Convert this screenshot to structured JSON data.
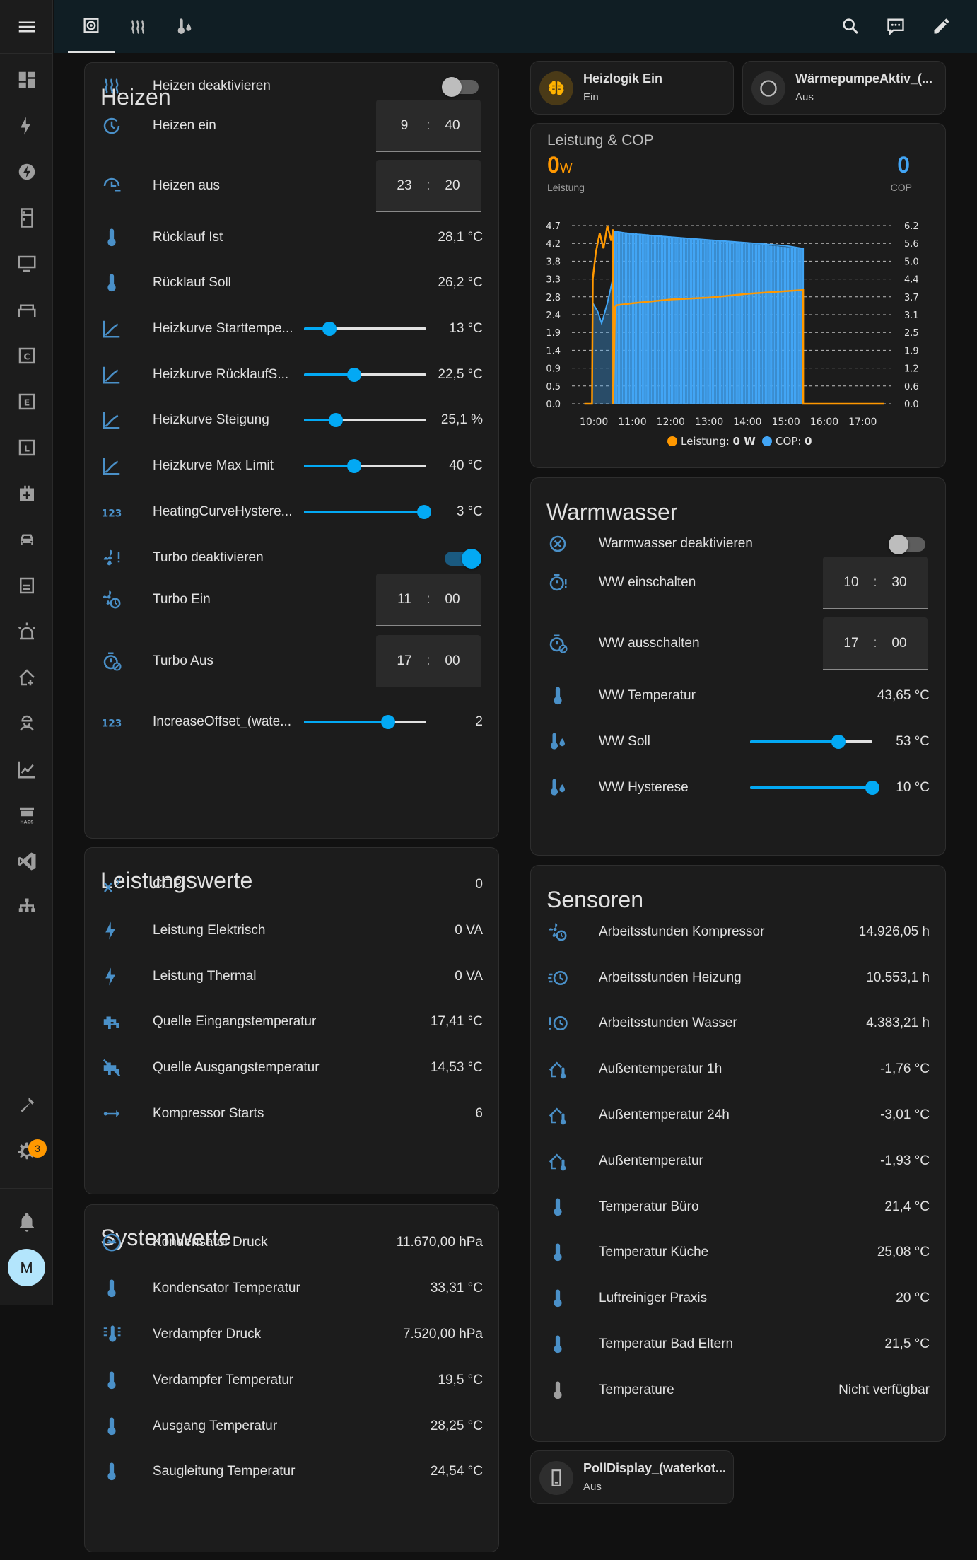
{
  "sidebar": {
    "notification_badge": "3",
    "user_initial": "M"
  },
  "chips": {
    "heizlogik": {
      "name": "Heizlogik Ein",
      "state": "Ein"
    },
    "waermepumpe": {
      "name": "WärmepumpeAktiv_(...",
      "state": "Aus"
    },
    "polldisplay": {
      "name": "PollDisplay_(waterkot...",
      "state": "Aus"
    }
  },
  "heizen": {
    "title": "Heizen",
    "rows": [
      {
        "label": "Heizen deaktivieren",
        "type": "toggle",
        "on": false,
        "icon": "radiator-icon"
      },
      {
        "label": "Heizen ein",
        "type": "time",
        "hour": "9",
        "minute": "40",
        "icon": "clock-start-icon"
      },
      {
        "label": "Heizen aus",
        "type": "time",
        "hour": "23",
        "minute": "20",
        "icon": "clock-end-icon"
      },
      {
        "label": "Rücklauf Ist",
        "value": "28,1 °C",
        "icon": "thermometer-icon"
      },
      {
        "label": "Rücklauf Soll",
        "value": "26,2 °C",
        "icon": "thermometer-icon"
      },
      {
        "label": "Heizkurve Starttempe...",
        "type": "slider",
        "fraction": 0.21,
        "value": "13 °C",
        "icon": "chart-line-icon"
      },
      {
        "label": "Heizkurve RücklaufS...",
        "type": "slider",
        "fraction": 0.41,
        "value": "22,5 °C",
        "icon": "chart-line-icon"
      },
      {
        "label": "Heizkurve Steigung",
        "type": "slider",
        "fraction": 0.26,
        "value": "25,1 %",
        "icon": "chart-line-icon"
      },
      {
        "label": "Heizkurve Max Limit",
        "type": "slider",
        "fraction": 0.41,
        "value": "40 °C",
        "icon": "chart-line-icon"
      },
      {
        "label": "HeatingCurveHystere...",
        "type": "slider",
        "fraction": 0.98,
        "value": "3 °C",
        "icon": "numeric-icon"
      },
      {
        "label": "Turbo deaktivieren",
        "type": "toggle",
        "on": true,
        "icon": "fan-alert-icon"
      },
      {
        "label": "Turbo Ein",
        "type": "time",
        "hour": "11",
        "minute": "00",
        "icon": "fan-clock-icon"
      },
      {
        "label": "Turbo Aus",
        "type": "time",
        "hour": "17",
        "minute": "00",
        "icon": "timer-off-icon"
      },
      {
        "label": "IncreaseOffset_(wate...",
        "type": "slider",
        "fraction": 0.69,
        "value": "2",
        "icon": "numeric-icon"
      }
    ]
  },
  "leistung": {
    "title": "Leistungswerte",
    "rows": [
      {
        "label": "COP",
        "value": "0",
        "icon": "math-power-icon"
      },
      {
        "label": "Leistung Elektrisch",
        "value": "0 VA",
        "icon": "flash-icon"
      },
      {
        "label": "Leistung Thermal",
        "value": "0 VA",
        "icon": "flash-icon"
      },
      {
        "label": "Quelle Eingangstemperatur",
        "value": "17,41 °C",
        "icon": "water-pump-icon"
      },
      {
        "label": "Quelle Ausgangstemperatur",
        "value": "14,53 °C",
        "icon": "water-pump-off-icon"
      },
      {
        "label": "Kompressor Starts",
        "value": "6",
        "icon": "arrow-left-right-icon"
      }
    ]
  },
  "system": {
    "title": "Systemwerte",
    "rows": [
      {
        "label": "Kondensator Druck",
        "value": "11.670,00 hPa",
        "icon": "gauge-icon"
      },
      {
        "label": "Kondensator Temperatur",
        "value": "33,31 °C",
        "icon": "thermometer-icon"
      },
      {
        "label": "Verdampfer Druck",
        "value": "7.520,00 hPa",
        "icon": "thermometer-lines-icon"
      },
      {
        "label": "Verdampfer Temperatur",
        "value": "19,5 °C",
        "icon": "thermometer-icon"
      },
      {
        "label": "Ausgang Temperatur",
        "value": "28,25 °C",
        "icon": "thermometer-icon"
      },
      {
        "label": "Saugleitung Temperatur",
        "value": "24,54 °C",
        "icon": "thermometer-icon"
      }
    ]
  },
  "chart_card": {
    "title": "Leistung & COP",
    "leistung_value": "0",
    "leistung_unit": "W",
    "leistung_label": "Leistung",
    "cop_value": "0",
    "cop_label": "COP",
    "legend_leistung": "Leistung: ",
    "legend_leistung_val": "0 W",
    "legend_cop": "COP: ",
    "legend_cop_val": "0"
  },
  "chart_data": {
    "type": "line",
    "x_ticks": [
      "10:00",
      "11:00",
      "12:00",
      "13:00",
      "14:00",
      "15:00",
      "16:00",
      "17:00"
    ],
    "y_left_ticks": [
      "4.7",
      "4.2",
      "3.8",
      "3.3",
      "2.8",
      "2.4",
      "1.9",
      "1.4",
      "0.9",
      "0.5",
      "0.0"
    ],
    "y_right_ticks": [
      "6.2",
      "5.6",
      "5.0",
      "4.4",
      "3.7",
      "3.1",
      "2.5",
      "1.9",
      "1.2",
      "0.6",
      "0.0"
    ],
    "ylim_left": [
      0,
      4.7
    ],
    "ylim_right": [
      0,
      6.2
    ],
    "series": [
      {
        "name": "Leistung",
        "color": "#ff9800",
        "axis": "left",
        "x": [
          9.75,
          9.95,
          9.97,
          10.05,
          10.15,
          10.25,
          10.35,
          10.45,
          10.5,
          10.5,
          10.55,
          10.6,
          11,
          12,
          13,
          14,
          15,
          15.45,
          15.45,
          17.55
        ],
        "y": [
          0,
          0,
          3.3,
          4.0,
          4.5,
          4.1,
          4.7,
          4.3,
          4.6,
          0,
          2.55,
          2.6,
          2.65,
          2.75,
          2.8,
          2.9,
          2.97,
          3.0,
          0,
          0
        ]
      },
      {
        "name": "COP",
        "color": "#42a5f5",
        "axis": "right",
        "x": [
          9.97,
          10.1,
          10.2,
          10.35,
          10.5,
          10.55,
          11,
          12,
          13,
          14,
          15,
          15.45,
          15.45
        ],
        "y": [
          3.5,
          3.2,
          2.8,
          3.5,
          4.4,
          6.0,
          5.9,
          5.8,
          5.7,
          5.6,
          5.5,
          5.4,
          0
        ]
      }
    ]
  },
  "warmwasser": {
    "title": "Warmwasser",
    "rows": [
      {
        "label": "Warmwasser deaktivieren",
        "type": "toggle",
        "on": false,
        "icon": "close-circle-icon"
      },
      {
        "label": "WW einschalten",
        "type": "time",
        "hour": "10",
        "minute": "30",
        "icon": "timer-alert-icon"
      },
      {
        "label": "WW ausschalten",
        "type": "time",
        "hour": "17",
        "minute": "00",
        "icon": "timer-off-icon"
      },
      {
        "label": "WW Temperatur",
        "value": "43,65 °C",
        "icon": "thermometer-icon"
      },
      {
        "label": "WW Soll",
        "type": "slider",
        "fraction": 0.72,
        "value": "53 °C",
        "icon": "thermometer-water-icon"
      },
      {
        "label": "WW Hysterese",
        "type": "slider",
        "fraction": 1.0,
        "value": "10 °C",
        "icon": "thermometer-water-icon"
      }
    ]
  },
  "sensoren": {
    "title": "Sensoren",
    "rows": [
      {
        "label": "Arbeitsstunden Kompressor",
        "value": "14.926,05 h",
        "icon": "fan-clock-icon"
      },
      {
        "label": "Arbeitsstunden Heizung",
        "value": "10.553,1 h",
        "icon": "clock-fast-icon"
      },
      {
        "label": "Arbeitsstunden Wasser",
        "value": "4.383,21 h",
        "icon": "clock-alert-icon"
      },
      {
        "label": "Außentemperatur 1h",
        "value": "-1,76 °C",
        "icon": "home-thermometer-icon"
      },
      {
        "label": "Außentemperatur 24h",
        "value": "-3,01 °C",
        "icon": "home-thermometer-icon"
      },
      {
        "label": "Außentemperatur",
        "value": "-1,93 °C",
        "icon": "home-thermometer-icon"
      },
      {
        "label": "Temperatur Büro",
        "value": "21,4 °C",
        "icon": "thermometer-icon"
      },
      {
        "label": "Temperatur Küche",
        "value": "25,08 °C",
        "icon": "thermometer-icon"
      },
      {
        "label": "Luftreiniger Praxis",
        "value": "20 °C",
        "icon": "thermometer-icon"
      },
      {
        "label": "Temperatur Bad Eltern",
        "value": "21,5 °C",
        "icon": "thermometer-icon"
      },
      {
        "label": "Temperature",
        "value": "Nicht verfügbar",
        "icon": "thermometer-gray-icon"
      }
    ]
  }
}
